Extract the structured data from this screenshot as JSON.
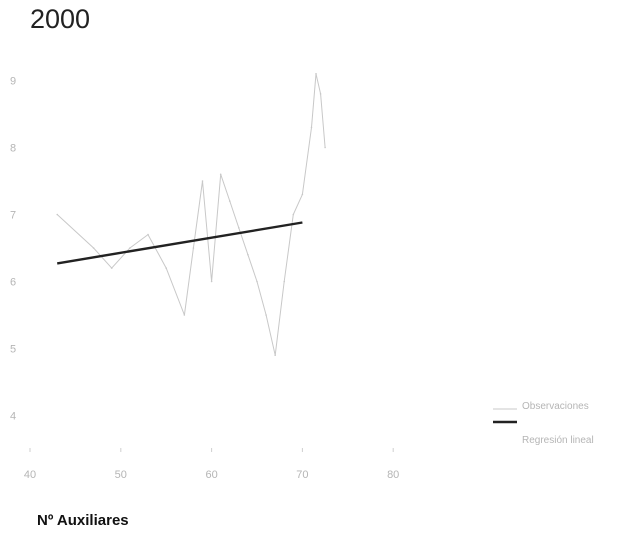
{
  "chart_data": {
    "type": "line",
    "title": "2000",
    "xlabel": "Nº Auxiliares",
    "ylabel": "",
    "xlim": [
      40,
      90
    ],
    "ylim": [
      3.5,
      9.5
    ],
    "x_ticks": [
      40,
      50,
      60,
      70,
      80
    ],
    "y_ticks": [
      4,
      5,
      6,
      7,
      8,
      9
    ],
    "x_tick_labels": [
      "40",
      "50",
      "60",
      "70",
      "80"
    ],
    "y_tick_labels": [
      "4",
      "5",
      "6",
      "7",
      "8",
      "9"
    ],
    "legend_position": "bottom-right",
    "series": [
      {
        "name": "Observaciones",
        "kind": "line",
        "color": "#c8c8c8",
        "points": [
          [
            43,
            7.0
          ],
          [
            47,
            6.5
          ],
          [
            49,
            6.2
          ],
          [
            51,
            6.5
          ],
          [
            53,
            6.7
          ],
          [
            55,
            6.2
          ],
          [
            57,
            5.5
          ],
          [
            58,
            6.5
          ],
          [
            59,
            7.5
          ],
          [
            60,
            6.0
          ],
          [
            61,
            7.6
          ],
          [
            62,
            7.2
          ],
          [
            63,
            6.8
          ],
          [
            64,
            6.4
          ],
          [
            65,
            6.0
          ],
          [
            66,
            5.5
          ],
          [
            67,
            4.9
          ],
          [
            68,
            6.0
          ],
          [
            69,
            7.0
          ],
          [
            70,
            7.3
          ],
          [
            71,
            8.3
          ],
          [
            71.5,
            9.1
          ],
          [
            72,
            8.8
          ],
          [
            72.5,
            8.0
          ]
        ]
      },
      {
        "name": "Regresión lineal",
        "kind": "line",
        "color": "#222222",
        "points": [
          [
            43,
            6.27
          ],
          [
            70,
            6.88
          ]
        ]
      }
    ]
  }
}
